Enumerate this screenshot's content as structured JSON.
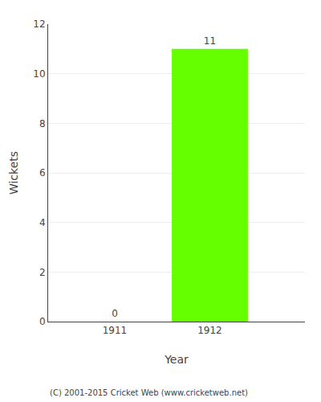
{
  "chart_data": {
    "type": "bar",
    "x": [
      1911,
      1912
    ],
    "values": [
      0,
      11
    ],
    "color": "#66ff00",
    "xlabel": "Year",
    "ylabel": "Wickets",
    "xlim": [
      1910.3,
      1913.0
    ],
    "xticks": [
      1911,
      1912
    ],
    "ylim": [
      0,
      12
    ],
    "yticks": [
      0,
      2,
      4,
      6,
      8,
      10,
      12
    ],
    "grid": true,
    "data_labels": true,
    "annotations": [
      "(C) 2001-2015 Cricket Web (www.cricketweb.net)"
    ]
  }
}
